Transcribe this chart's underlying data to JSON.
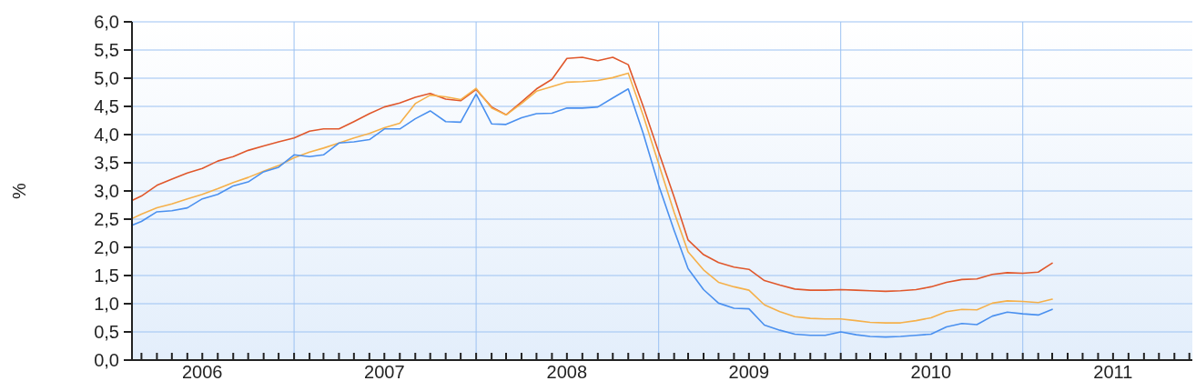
{
  "chart_data": {
    "type": "line",
    "ylabel": "%",
    "x": [
      "2006-02-10",
      "2006-03-01",
      "2006-04-01",
      "2006-05-01",
      "2006-06-01",
      "2006-07-01",
      "2006-08-01",
      "2006-09-01",
      "2006-10-01",
      "2006-11-01",
      "2006-12-01",
      "2007-01-01",
      "2007-02-01",
      "2007-03-01",
      "2007-04-01",
      "2007-05-01",
      "2007-06-01",
      "2007-07-01",
      "2007-08-01",
      "2007-09-01",
      "2007-10-01",
      "2007-11-01",
      "2007-12-01",
      "2008-01-01",
      "2008-02-01",
      "2008-03-01",
      "2008-04-01",
      "2008-05-01",
      "2008-06-01",
      "2008-07-01",
      "2008-08-01",
      "2008-09-01",
      "2008-10-01",
      "2008-11-01",
      "2008-12-01",
      "2009-01-01",
      "2009-02-01",
      "2009-03-01",
      "2009-04-01",
      "2009-05-01",
      "2009-06-01",
      "2009-07-01",
      "2009-08-01",
      "2009-09-01",
      "2009-10-01",
      "2009-11-01",
      "2009-12-01",
      "2010-01-01",
      "2010-02-01",
      "2010-03-01",
      "2010-04-01",
      "2010-05-01",
      "2010-06-01",
      "2010-07-01",
      "2010-08-01",
      "2010-09-01",
      "2010-10-01",
      "2010-11-01",
      "2010-12-01",
      "2011-01-01",
      "2011-02-01",
      "2011-03-01"
    ],
    "series": [
      {
        "color": "#e0572b",
        "values": [
          2.83,
          2.91,
          3.1,
          3.21,
          3.32,
          3.4,
          3.53,
          3.61,
          3.72,
          3.8,
          3.87,
          3.94,
          4.06,
          4.1,
          4.1,
          4.23,
          4.37,
          4.49,
          4.56,
          4.66,
          4.73,
          4.63,
          4.6,
          4.8,
          4.49,
          4.35,
          4.58,
          4.81,
          4.98,
          5.35,
          5.37,
          5.31,
          5.37,
          5.24,
          4.5,
          3.69,
          2.89,
          2.13,
          1.87,
          1.73,
          1.65,
          1.61,
          1.41,
          1.33,
          1.26,
          1.24,
          1.24,
          1.25,
          1.24,
          1.23,
          1.22,
          1.23,
          1.25,
          1.3,
          1.38,
          1.43,
          1.44,
          1.52,
          1.55,
          1.54,
          1.56,
          1.72
        ]
      },
      {
        "color": "#f5b04a",
        "values": [
          2.51,
          2.59,
          2.7,
          2.77,
          2.86,
          2.94,
          3.04,
          3.15,
          3.24,
          3.35,
          3.45,
          3.59,
          3.69,
          3.76,
          3.85,
          3.94,
          4.02,
          4.12,
          4.2,
          4.55,
          4.7,
          4.67,
          4.62,
          4.82,
          4.47,
          4.35,
          4.55,
          4.77,
          4.85,
          4.93,
          4.94,
          4.96,
          5.01,
          5.09,
          4.34,
          3.48,
          2.62,
          1.92,
          1.6,
          1.38,
          1.3,
          1.24,
          0.98,
          0.86,
          0.77,
          0.74,
          0.73,
          0.73,
          0.7,
          0.67,
          0.66,
          0.66,
          0.7,
          0.75,
          0.86,
          0.9,
          0.89,
          1.01,
          1.05,
          1.04,
          1.02,
          1.08
        ]
      },
      {
        "color": "#4a90ef",
        "values": [
          2.39,
          2.46,
          2.63,
          2.65,
          2.7,
          2.86,
          2.94,
          3.09,
          3.16,
          3.34,
          3.42,
          3.64,
          3.61,
          3.64,
          3.85,
          3.87,
          3.91,
          4.1,
          4.1,
          4.28,
          4.42,
          4.23,
          4.22,
          4.72,
          4.19,
          4.18,
          4.3,
          4.37,
          4.38,
          4.47,
          4.47,
          4.49,
          4.65,
          4.81,
          4.02,
          3.1,
          2.3,
          1.62,
          1.25,
          1.01,
          0.92,
          0.91,
          0.62,
          0.53,
          0.46,
          0.44,
          0.44,
          0.5,
          0.45,
          0.42,
          0.41,
          0.42,
          0.44,
          0.46,
          0.59,
          0.65,
          0.63,
          0.78,
          0.85,
          0.82,
          0.8,
          0.9
        ]
      }
    ],
    "xlim": [
      "2006-02-10",
      "2011-12-07"
    ],
    "xticks": [
      {
        "value": "2006-07-01",
        "label": "2006"
      },
      {
        "value": "2007-01-01",
        "label": null
      },
      {
        "value": "2007-07-01",
        "label": "2007"
      },
      {
        "value": "2008-01-01",
        "label": null
      },
      {
        "value": "2008-07-01",
        "label": "2008"
      },
      {
        "value": "2009-01-01",
        "label": null
      },
      {
        "value": "2009-07-01",
        "label": "2009"
      },
      {
        "value": "2010-01-01",
        "label": null
      },
      {
        "value": "2010-07-01",
        "label": "2010"
      },
      {
        "value": "2011-01-01",
        "label": null
      },
      {
        "value": "2011-07-01",
        "label": "2011"
      }
    ],
    "ylim": [
      0,
      6
    ],
    "yticks": [
      {
        "value": 0,
        "label": "0,0"
      },
      {
        "value": 0.5,
        "label": "0,5"
      },
      {
        "value": 1,
        "label": "1,0"
      },
      {
        "value": 1.5,
        "label": "1,5"
      },
      {
        "value": 2,
        "label": "2,0"
      },
      {
        "value": 2.5,
        "label": "2,5"
      },
      {
        "value": 3,
        "label": "3,0"
      },
      {
        "value": 3.5,
        "label": "3,5"
      },
      {
        "value": 4,
        "label": "4,0"
      },
      {
        "value": 4.5,
        "label": "4,5"
      },
      {
        "value": 5,
        "label": "5,0"
      },
      {
        "value": 5.5,
        "label": "5,5"
      },
      {
        "value": 6,
        "label": "6,0"
      }
    ],
    "grid": true,
    "marker": "none",
    "line_style": "solid"
  }
}
